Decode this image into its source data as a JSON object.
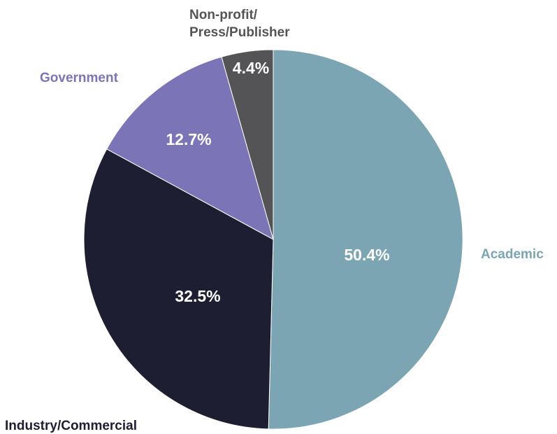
{
  "chart_data": {
    "type": "pie",
    "slices": [
      {
        "label": "Academic",
        "value": 50.4,
        "value_label": "50.4%",
        "color": "#7ba5b2"
      },
      {
        "label": "Industry/Commercial",
        "value": 32.5,
        "value_label": "32.5%",
        "color": "#1e1e32"
      },
      {
        "label": "Government",
        "value": 12.7,
        "value_label": "12.7%",
        "color": "#7b75b8"
      },
      {
        "label": "Non-profit/ Press/Publisher",
        "label_lines": [
          "Non-profit/",
          "Press/Publisher"
        ],
        "value": 4.4,
        "value_label": "4.4%",
        "color": "#545456"
      }
    ],
    "start_angle_deg": 0,
    "direction": "clockwise",
    "legend": "none (direct labels beside slices)"
  }
}
